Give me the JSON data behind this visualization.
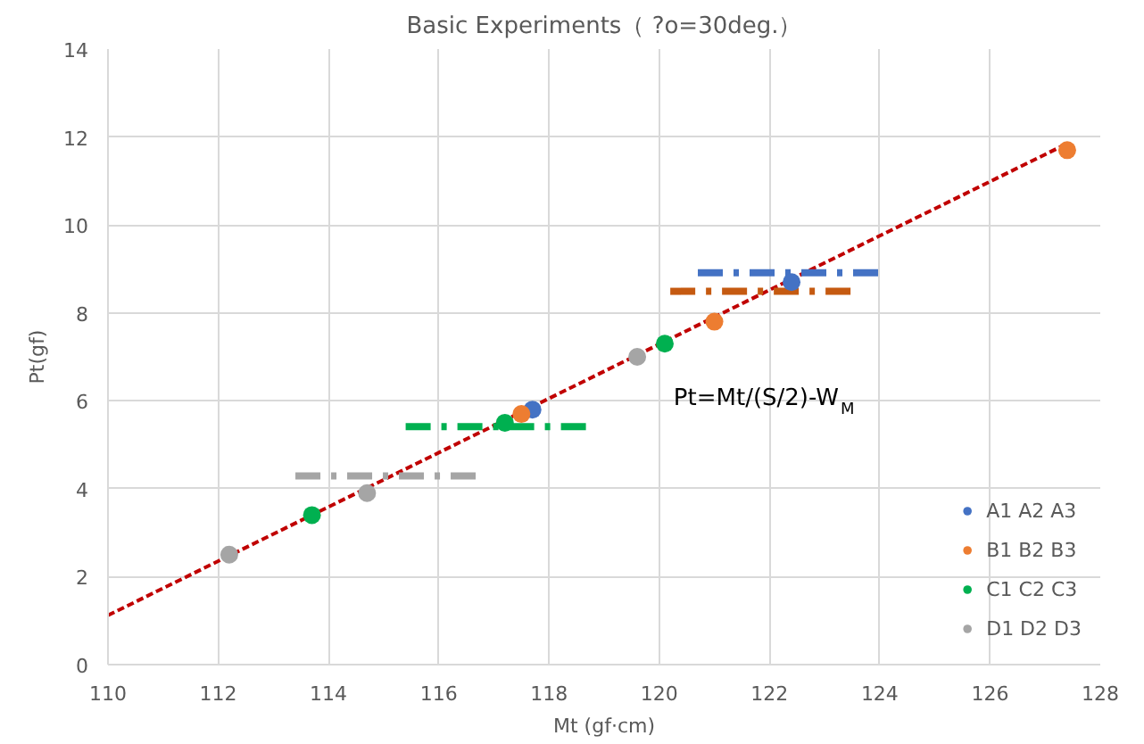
{
  "chart_data": {
    "type": "scatter",
    "title": "Basic Experiments（ ?o=30deg.）",
    "xlabel": "Mt (gf·cm)",
    "ylabel": "Pt(gf)",
    "xlim": [
      110,
      128
    ],
    "ylim": [
      0,
      14
    ],
    "xticks": [
      110,
      112,
      114,
      116,
      118,
      120,
      122,
      124,
      126,
      128
    ],
    "yticks": [
      0,
      2,
      4,
      6,
      8,
      10,
      12,
      14
    ],
    "grid": true,
    "legend": "bottom right",
    "annotations": [
      "Pt=Mt/(S/2)-W$_{M}$"
    ],
    "series": [
      {
        "type": "line",
        "color": "#c00000",
        "line_style": "dashed",
        "x": [
          110,
          127.4
        ],
        "values": [
          1.12,
          11.85
        ]
      },
      {
        "type": "line",
        "color": "#4472c4",
        "line_style": "dashdot",
        "x": [
          120.7,
          124.0
        ],
        "values": [
          8.91,
          8.91
        ]
      },
      {
        "type": "line",
        "color": "#c55a11",
        "line_style": "dashdot",
        "x": [
          120.2,
          123.6
        ],
        "values": [
          8.49,
          8.49
        ]
      },
      {
        "type": "line",
        "color": "#00b050",
        "line_style": "dashdot",
        "x": [
          115.4,
          118.7
        ],
        "values": [
          5.41,
          5.41
        ]
      },
      {
        "type": "line",
        "color": "#a5a5a5",
        "line_style": "dashdot",
        "x": [
          113.4,
          116.7
        ],
        "values": [
          4.29,
          4.29
        ]
      },
      {
        "name": "A1 A2 A3",
        "color": "#4472c4",
        "marker": "circle",
        "x": [
          117.7,
          122.4
        ],
        "values": [
          5.8,
          8.7
        ]
      },
      {
        "name": "B1 B2 B3",
        "color": "#ed7d31",
        "marker": "circle",
        "x": [
          117.5,
          121.0,
          127.4
        ],
        "values": [
          5.7,
          7.8,
          11.7
        ]
      },
      {
        "name": "C1 C2 C3",
        "color": "#00b050",
        "marker": "circle",
        "x": [
          113.7,
          117.2,
          120.1
        ],
        "values": [
          3.4,
          5.5,
          7.3
        ]
      },
      {
        "name": "D1 D2 D3",
        "color": "#a5a5a5",
        "marker": "circle",
        "x": [
          112.2,
          114.7,
          119.6
        ],
        "values": [
          2.5,
          3.9,
          7.0
        ]
      }
    ]
  }
}
